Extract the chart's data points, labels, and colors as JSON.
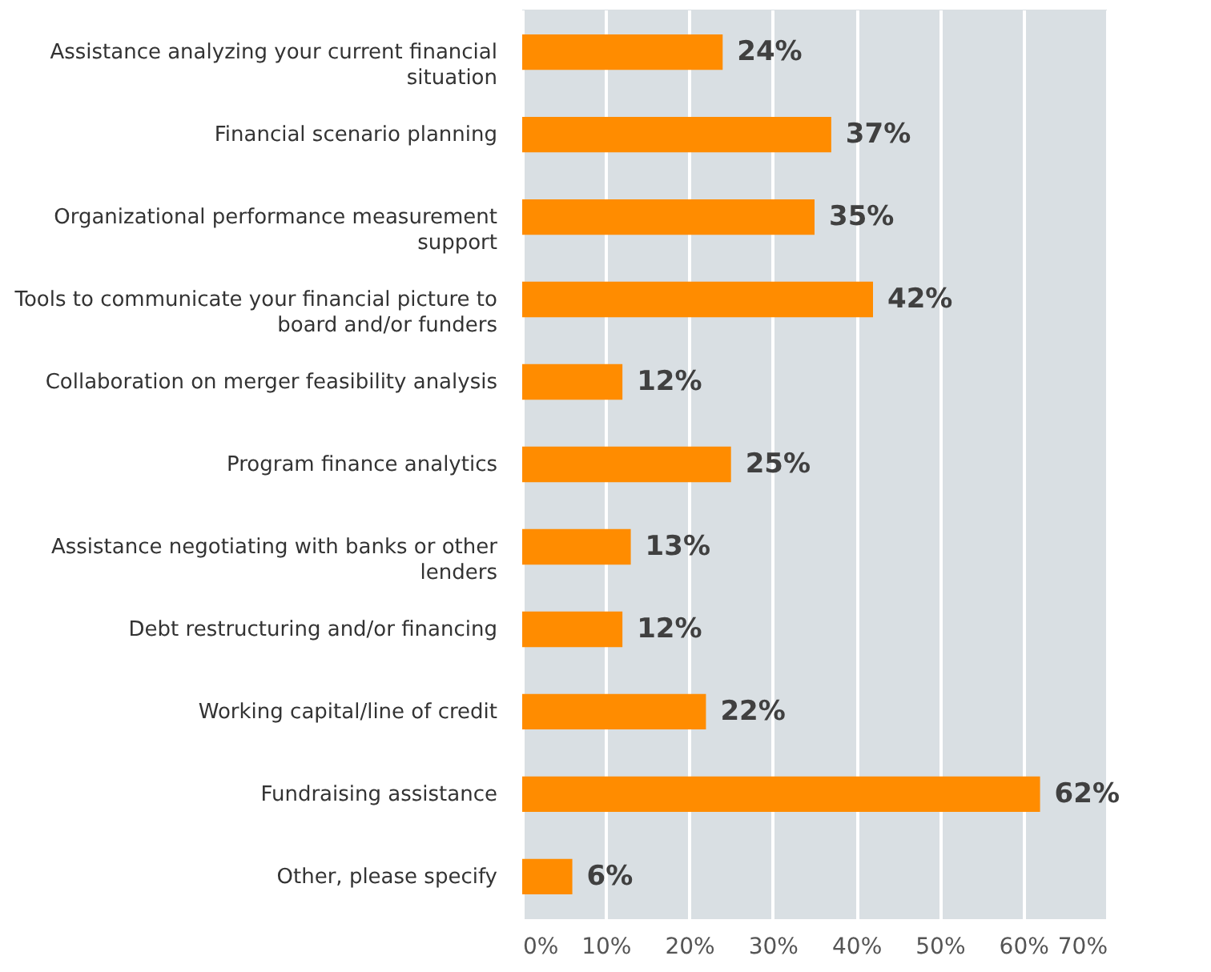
{
  "chart_data": {
    "type": "bar",
    "orientation": "horizontal",
    "categories": [
      "Assistance analyzing your current financial situation",
      "Financial scenario planning",
      "Organizational performance measurement support",
      "Tools to communicate your financial picture to board and/or funders",
      "Collaboration on merger feasibility analysis",
      "Program finance analytics",
      "Assistance negotiating with banks or other lenders",
      "Debt restructuring and/or financing",
      "Working capital/line of credit",
      "Fundraising assistance",
      "Other, please specify"
    ],
    "values": [
      24,
      37,
      35,
      42,
      12,
      25,
      13,
      12,
      22,
      62,
      6
    ],
    "value_labels": [
      "24%",
      "37%",
      "35%",
      "42%",
      "12%",
      "25%",
      "13%",
      "12%",
      "22%",
      "62%",
      "6%"
    ],
    "color": "#ff8c00",
    "xlim": [
      0,
      70
    ],
    "xticks": [
      {
        "value": 0,
        "label": "0%"
      },
      {
        "value": 10,
        "label": "10%"
      },
      {
        "value": 20,
        "label": "20%"
      },
      {
        "value": 30,
        "label": "30%"
      },
      {
        "value": 40,
        "label": "40%"
      },
      {
        "value": 50,
        "label": "50%"
      },
      {
        "value": 60,
        "label": "60%"
      },
      {
        "value": 70,
        "label": "70%"
      }
    ],
    "grid": "x"
  }
}
